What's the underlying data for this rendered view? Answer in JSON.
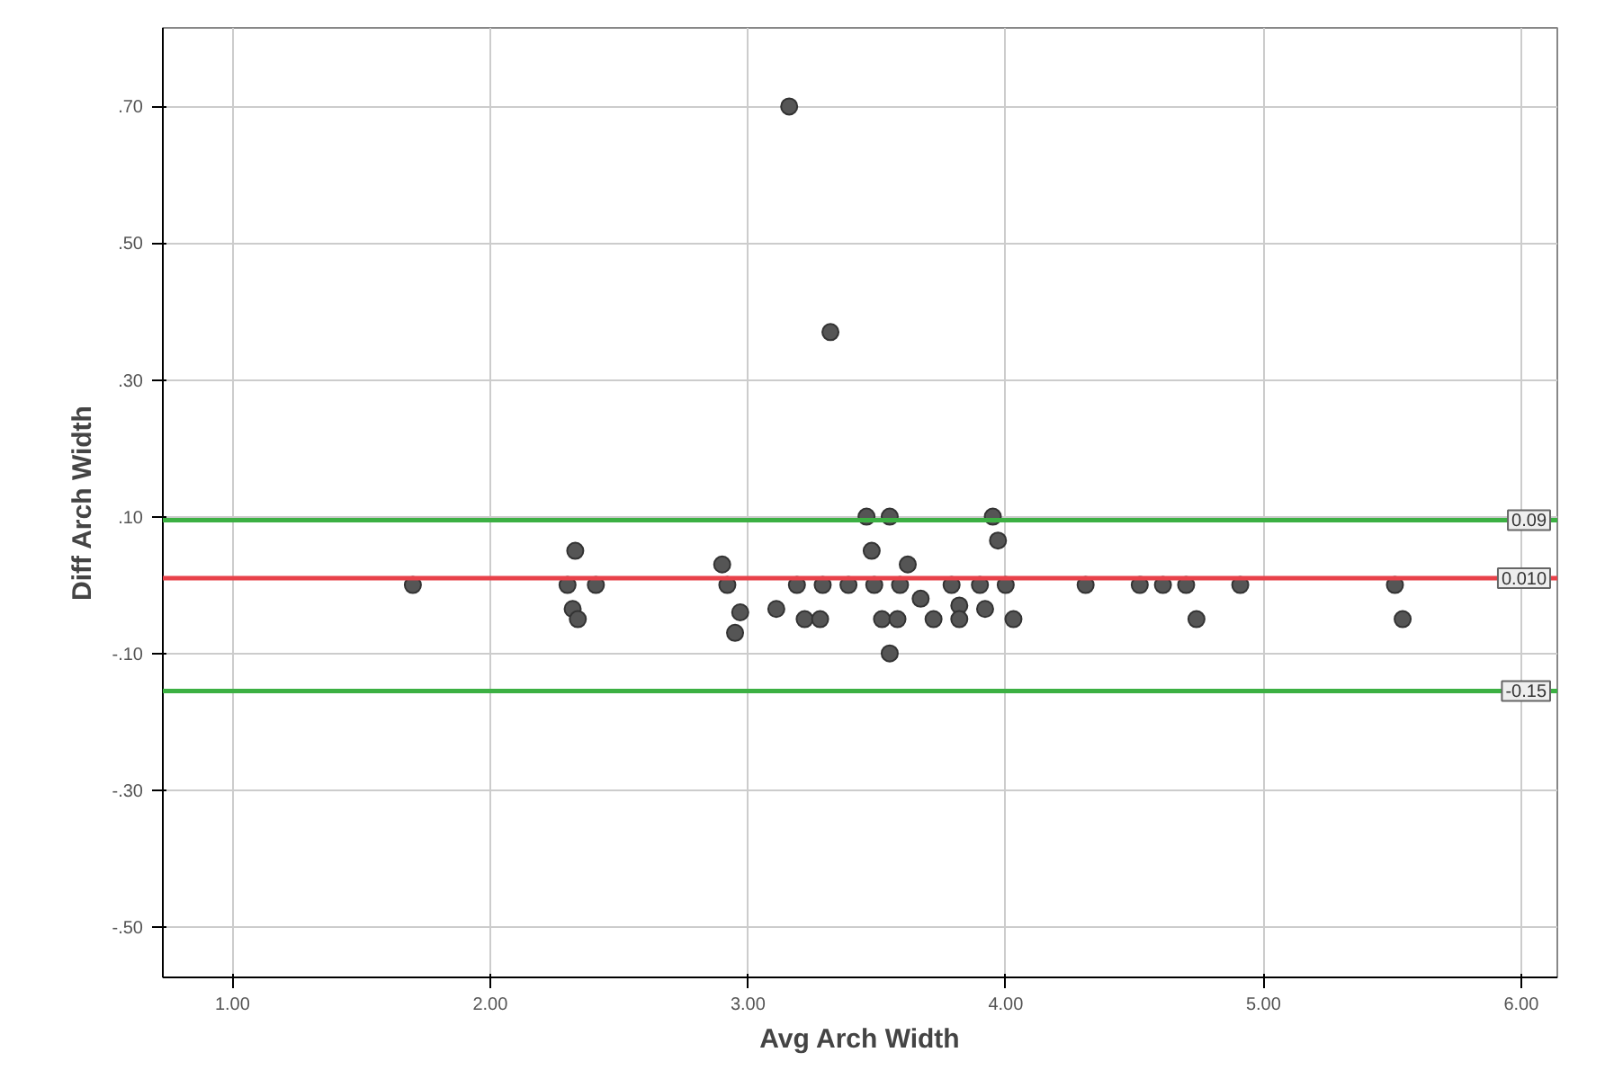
{
  "chart_data": {
    "type": "scatter",
    "xlabel": "Avg Arch Width",
    "ylabel": "Diff Arch Width",
    "x": [
      1.7,
      2.33,
      2.3,
      2.41,
      2.32,
      2.34,
      2.9,
      2.92,
      2.97,
      2.95,
      3.11,
      3.19,
      3.22,
      3.28,
      3.29,
      3.39,
      3.49,
      3.59,
      3.46,
      3.55,
      3.48,
      3.62,
      3.67,
      3.52,
      3.58,
      3.55,
      3.72,
      3.79,
      3.82,
      3.82,
      3.9,
      3.92,
      3.95,
      3.97,
      4.0,
      4.03,
      4.31,
      4.52,
      4.61,
      4.7,
      4.74,
      4.91,
      5.51,
      5.54,
      3.16,
      3.32
    ],
    "series": [
      {
        "color": "#555555",
        "values": [
          0,
          0.05,
          0,
          0,
          -0.035,
          -0.05,
          0.03,
          0,
          -0.04,
          -0.07,
          -0.035,
          0,
          -0.05,
          -0.05,
          0,
          0,
          0,
          0,
          0.1,
          0.1,
          0.05,
          0.03,
          -0.02,
          -0.05,
          -0.05,
          -0.1,
          -0.05,
          0,
          -0.03,
          -0.05,
          0,
          -0.035,
          0.1,
          0.065,
          0,
          -0.05,
          0,
          0,
          0,
          0,
          -0.05,
          0,
          0,
          -0.05,
          0.7,
          0.37
        ]
      }
    ],
    "marker": "circle",
    "grid": true,
    "xlim": [
      0.73,
      6.14
    ],
    "ylim": [
      -0.574,
      0.815
    ],
    "xticks": [
      {
        "value": 1,
        "label": "1.00"
      },
      {
        "value": 2,
        "label": "2.00"
      },
      {
        "value": 3,
        "label": "3.00"
      },
      {
        "value": 4,
        "label": "4.00"
      },
      {
        "value": 5,
        "label": "5.00"
      },
      {
        "value": 6,
        "label": "6.00"
      }
    ],
    "yticks": [
      {
        "value": -0.5,
        "label": "-.50"
      },
      {
        "value": -0.3,
        "label": "-.30"
      },
      {
        "value": -0.1,
        "label": "-.10"
      },
      {
        "value": 0.1,
        "label": ".10"
      },
      {
        "value": 0.3,
        "label": ".30"
      },
      {
        "value": 0.5,
        "label": ".50"
      },
      {
        "value": 0.7,
        "label": ".70"
      }
    ],
    "ref_lines": [
      {
        "axis": "y",
        "value": 0.095,
        "label": "0.09",
        "color": "#3cb043"
      },
      {
        "axis": "y",
        "value": 0.01,
        "label": "0.010",
        "color": "#e8424a"
      },
      {
        "axis": "y",
        "value": -0.155,
        "label": "-0.15",
        "color": "#3cb043"
      }
    ]
  }
}
